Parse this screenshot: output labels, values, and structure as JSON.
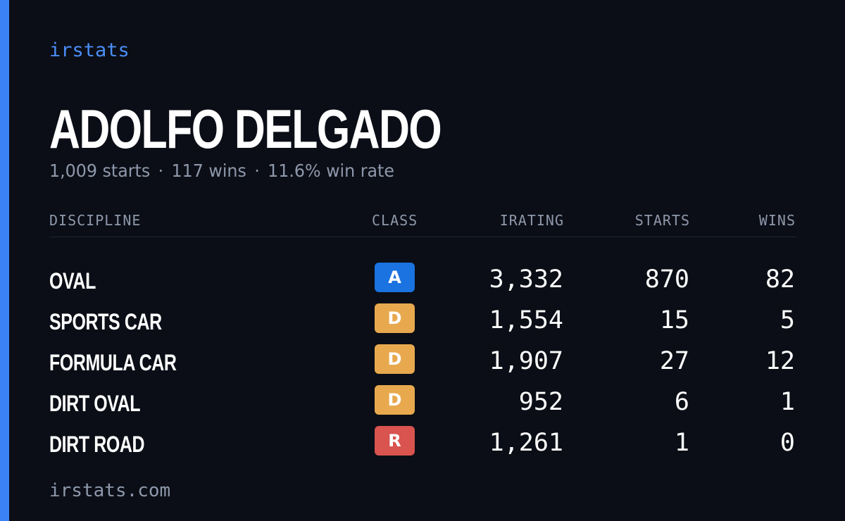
{
  "brand": "irstats",
  "driver": {
    "name": "ADOLFO DELGADO",
    "starts_text": "1,009 starts",
    "wins_text": "117 wins",
    "win_rate_text": "11.6% win rate",
    "separator": "·"
  },
  "table": {
    "headers": {
      "discipline": "DISCIPLINE",
      "class": "CLASS",
      "irating": "IRATING",
      "starts": "STARTS",
      "wins": "WINS"
    },
    "rows": [
      {
        "discipline": "OVAL",
        "class": "A",
        "class_color": "#1a73e0",
        "irating": "3,332",
        "starts": "870",
        "wins": "82"
      },
      {
        "discipline": "SPORTS CAR",
        "class": "D",
        "class_color": "#e8a94e",
        "irating": "1,554",
        "starts": "15",
        "wins": "5"
      },
      {
        "discipline": "FORMULA CAR",
        "class": "D",
        "class_color": "#e8a94e",
        "irating": "1,907",
        "starts": "27",
        "wins": "12"
      },
      {
        "discipline": "DIRT OVAL",
        "class": "D",
        "class_color": "#e8a94e",
        "irating": "952",
        "starts": "6",
        "wins": "1"
      },
      {
        "discipline": "DIRT ROAD",
        "class": "R",
        "class_color": "#d9534f",
        "irating": "1,261",
        "starts": "1",
        "wins": "0"
      }
    ]
  },
  "footer": "irstats.com",
  "colors": {
    "background": "#0b0e16",
    "accent": "#3b82f6",
    "muted_text": "#8e98ab"
  }
}
